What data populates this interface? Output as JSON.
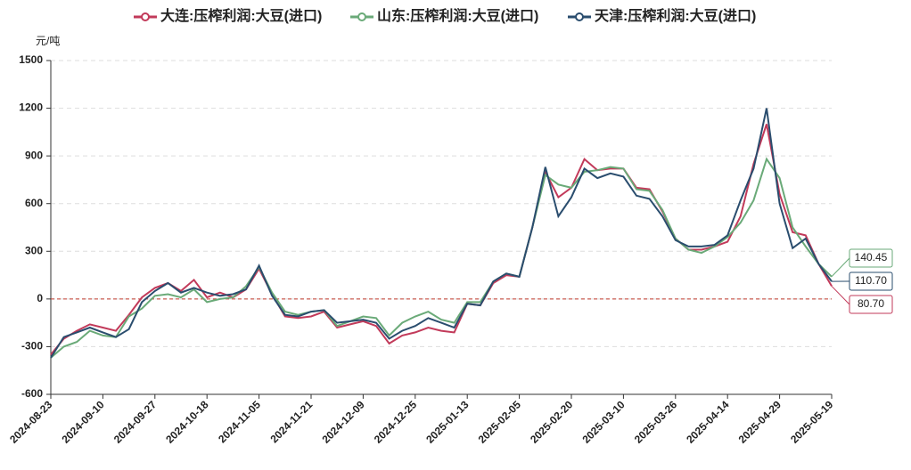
{
  "chart_data": {
    "type": "line",
    "y_axis_label": "元/吨",
    "categories": [
      "2024-08-23",
      null,
      null,
      null,
      "2024-09-10",
      null,
      null,
      null,
      "2024-09-27",
      null,
      null,
      null,
      "2024-10-18",
      null,
      null,
      null,
      "2024-11-05",
      null,
      null,
      null,
      "2024-11-21",
      null,
      null,
      null,
      "2024-12-09",
      null,
      null,
      null,
      "2024-12-25",
      null,
      null,
      null,
      "2025-01-13",
      null,
      null,
      null,
      "2025-02-05",
      null,
      null,
      null,
      "2025-02-20",
      null,
      null,
      null,
      "2025-03-10",
      null,
      null,
      null,
      "2025-03-26",
      null,
      null,
      null,
      "2025-04-14",
      null,
      null,
      null,
      "2025-04-29",
      null,
      null,
      null,
      "2025-05-19"
    ],
    "series": [
      {
        "name": "大连:压榨利润:大豆(进口)",
        "color": "#c23a5a",
        "values": [
          -350,
          -250,
          -200,
          -160,
          -180,
          -200,
          -100,
          10,
          70,
          100,
          50,
          120,
          10,
          40,
          10,
          60,
          190,
          30,
          -110,
          -120,
          -110,
          -80,
          -180,
          -160,
          -140,
          -170,
          -280,
          -230,
          -210,
          -180,
          -200,
          -210,
          -30,
          -40,
          100,
          150,
          140,
          450,
          800,
          640,
          700,
          880,
          810,
          820,
          820,
          700,
          690,
          550,
          380,
          310,
          310,
          330,
          360,
          520,
          850,
          1100,
          660,
          420,
          400,
          220,
          80.7
        ],
        "value_labels": [
          null,
          null,
          null,
          null,
          null,
          null,
          null,
          null,
          null,
          null,
          null,
          null,
          null,
          null,
          null,
          null,
          null,
          null,
          null,
          null,
          null,
          null,
          null,
          null,
          null,
          null,
          null,
          null,
          null,
          null,
          null,
          null,
          null,
          null,
          null,
          null,
          null,
          null,
          null,
          null,
          null,
          null,
          null,
          null,
          null,
          null,
          null,
          null,
          null,
          null,
          null,
          null,
          null,
          null,
          null,
          null,
          null,
          null,
          null,
          null,
          "80.70"
        ]
      },
      {
        "name": "山东:压榨利润:大豆(进口)",
        "color": "#6aaa78",
        "values": [
          -370,
          -300,
          -270,
          -200,
          -230,
          -240,
          -110,
          -60,
          20,
          30,
          10,
          60,
          -20,
          0,
          10,
          80,
          200,
          40,
          -80,
          -100,
          -80,
          -70,
          -170,
          -140,
          -110,
          -120,
          -230,
          -150,
          -110,
          -80,
          -130,
          -150,
          -20,
          -20,
          110,
          160,
          140,
          450,
          780,
          720,
          700,
          800,
          810,
          830,
          820,
          690,
          680,
          560,
          380,
          310,
          290,
          330,
          390,
          480,
          620,
          880,
          760,
          450,
          330,
          220,
          140.45
        ],
        "value_labels": [
          null,
          null,
          null,
          null,
          null,
          null,
          null,
          null,
          null,
          null,
          null,
          null,
          null,
          null,
          null,
          null,
          null,
          null,
          null,
          null,
          null,
          null,
          null,
          null,
          null,
          null,
          null,
          null,
          null,
          null,
          null,
          null,
          null,
          null,
          null,
          null,
          null,
          null,
          null,
          null,
          null,
          null,
          null,
          null,
          null,
          null,
          null,
          null,
          null,
          null,
          null,
          null,
          null,
          null,
          null,
          null,
          null,
          null,
          null,
          null,
          "140.45"
        ]
      },
      {
        "name": "天津:压榨利润:大豆(进口)",
        "color": "#2a4d6e",
        "values": [
          -370,
          -240,
          -210,
          -180,
          -210,
          -240,
          -190,
          -20,
          50,
          100,
          40,
          70,
          40,
          20,
          30,
          60,
          210,
          20,
          -100,
          -110,
          -80,
          -70,
          -150,
          -140,
          -130,
          -150,
          -250,
          -200,
          -170,
          -120,
          -150,
          -180,
          -30,
          -40,
          110,
          160,
          140,
          450,
          830,
          520,
          640,
          820,
          760,
          790,
          770,
          650,
          630,
          520,
          370,
          330,
          330,
          340,
          400,
          620,
          820,
          1200,
          600,
          320,
          380,
          220,
          110.7
        ],
        "value_labels": [
          null,
          null,
          null,
          null,
          null,
          null,
          null,
          null,
          null,
          null,
          null,
          null,
          null,
          null,
          null,
          null,
          null,
          null,
          null,
          null,
          null,
          null,
          null,
          null,
          null,
          null,
          null,
          null,
          null,
          null,
          null,
          null,
          null,
          null,
          null,
          null,
          null,
          null,
          null,
          null,
          null,
          null,
          null,
          null,
          null,
          null,
          null,
          null,
          null,
          null,
          null,
          null,
          null,
          null,
          null,
          null,
          null,
          null,
          null,
          null,
          "110.70"
        ]
      }
    ],
    "ylim": [
      -600,
      1500
    ],
    "yticks": [
      -600,
      -300,
      0,
      300,
      600,
      900,
      1200,
      1500
    ],
    "grid": true,
    "reference_line": 0,
    "reference_color": "#c0392b",
    "legend": "top"
  }
}
